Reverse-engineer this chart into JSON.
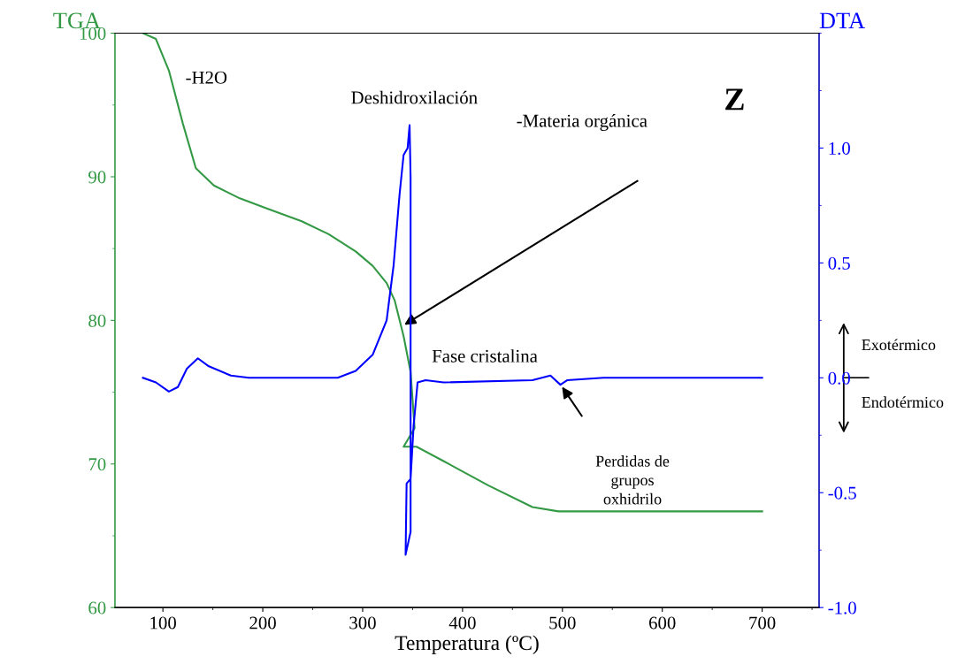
{
  "chart_data": {
    "type": "line",
    "xlabel": "Temperatura (ºC)",
    "ylabel": "TGA",
    "y2label": "DTA",
    "xlim": [
      52,
      757
    ],
    "xticks": [
      100,
      200,
      300,
      400,
      500,
      600,
      700
    ],
    "ylim": [
      60,
      100
    ],
    "yticks": [
      60,
      70,
      80,
      90,
      100
    ],
    "y2lim": [
      -1.0,
      1.5
    ],
    "y2ticks": [
      {
        "value": -1.0,
        "label": "-1.0"
      },
      {
        "value": -0.5,
        "label": "-0.5"
      },
      {
        "value": 0.0,
        "label": "0.0"
      },
      {
        "value": 0.5,
        "label": "0.5"
      },
      {
        "value": 1.0,
        "label": "1.0"
      }
    ],
    "grid": false,
    "legend": false,
    "marker": "none",
    "line_style": "solid",
    "series": [
      {
        "color": "#339944",
        "x": [
          80,
          93,
          106,
          120,
          133,
          151,
          177,
          204,
          239,
          266,
          293,
          310,
          324,
          332,
          341,
          348,
          352,
          341,
          354,
          381,
          426,
          470,
          496,
          629,
          700
        ],
        "values": [
          100,
          99.6,
          97.4,
          93.7,
          90.6,
          89.4,
          88.5,
          87.8,
          86.9,
          86.0,
          84.8,
          83.8,
          82.6,
          81.4,
          78.9,
          76.4,
          72.5,
          71.2,
          71.2,
          70.2,
          68.5,
          67.0,
          66.7,
          66.7,
          66.7
        ]
      },
      {
        "color": "#0000ff",
        "axis": "y2",
        "x": [
          80,
          93,
          106,
          115,
          124,
          135,
          146,
          168,
          186,
          275,
          293,
          310,
          324,
          331,
          337,
          341,
          345,
          347,
          348,
          348,
          343,
          344,
          348,
          351,
          355,
          363,
          381,
          470,
          488,
          498,
          505,
          541,
          700
        ],
        "values": [
          0.0,
          -0.02,
          -0.06,
          -0.04,
          0.04,
          0.085,
          0.05,
          0.01,
          0.0,
          0.0,
          0.03,
          0.1,
          0.25,
          0.49,
          0.8,
          0.97,
          1.0,
          1.1,
          0.87,
          -0.67,
          -0.77,
          -0.46,
          -0.44,
          -0.21,
          -0.02,
          -0.01,
          -0.02,
          -0.01,
          0.01,
          -0.03,
          -0.01,
          0.0,
          0.0
        ]
      }
    ],
    "annotations": [
      "-H2O",
      "Deshidroxilación",
      "Z",
      "-Materia orgánica",
      "Fase cristalina",
      "Perdidas de\ngrupos\noxhidrilo",
      "Exotérmico",
      "Endotérmico"
    ]
  }
}
